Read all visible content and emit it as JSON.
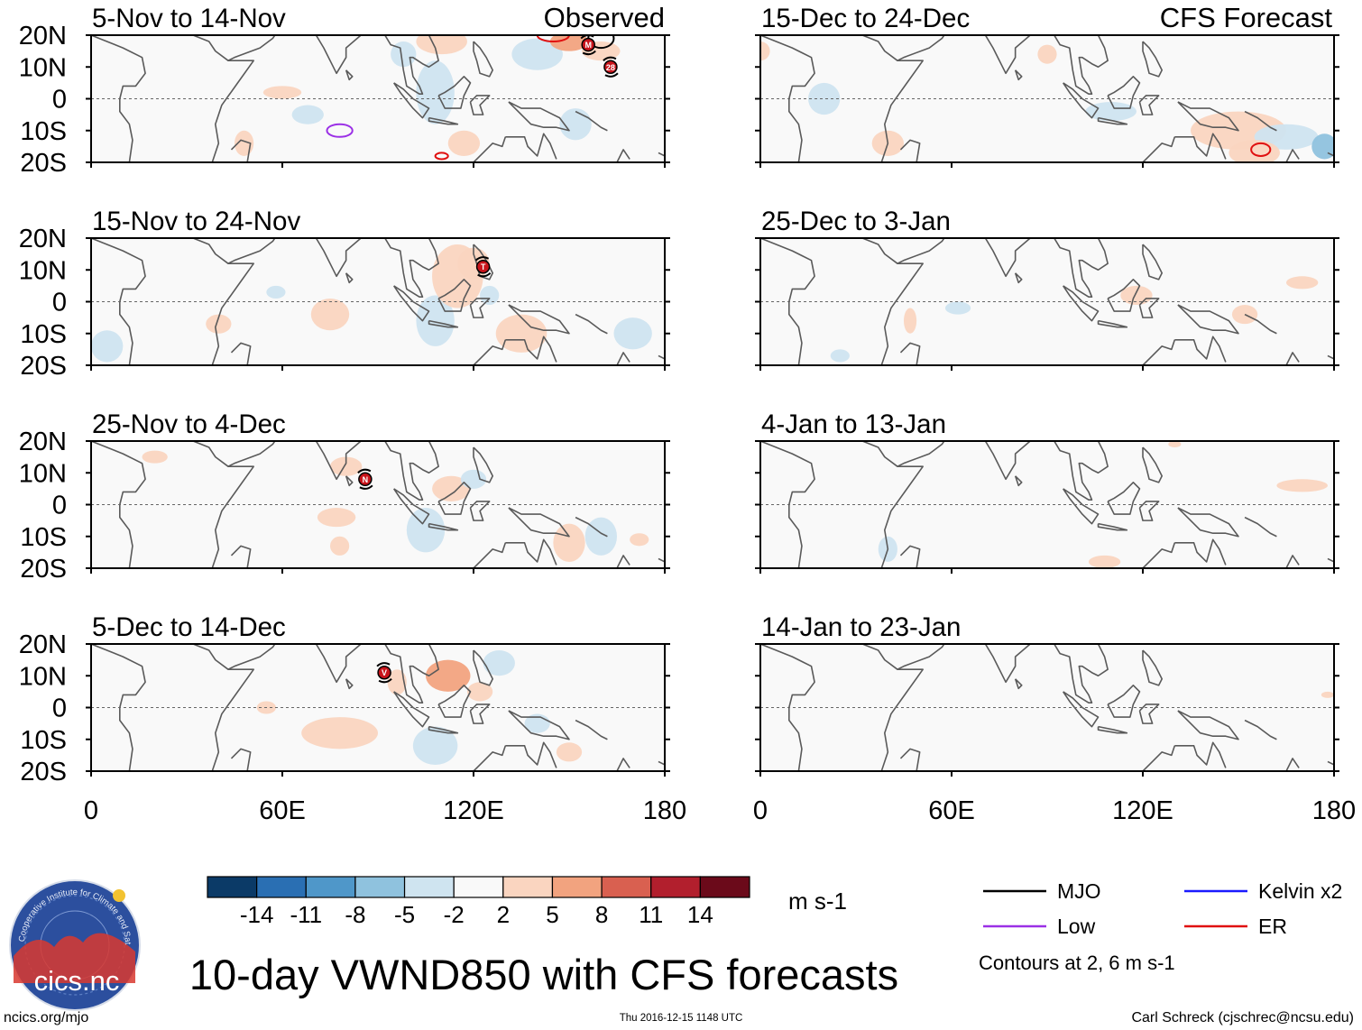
{
  "figure": {
    "title": "10-day VWND850 with CFS forecasts",
    "site": "ncics.org/mjo",
    "timestamp": "Thu 2016-12-15 1148 UTC",
    "author": "Carl Schreck (cjschrec@ncsu.edu)",
    "logo": {
      "name": "cics.nc",
      "ring_text": "Cooperative Institute for Climate and Satellites"
    }
  },
  "columns": {
    "left_header": "Observed",
    "right_header": "CFS Forecast"
  },
  "chart_data": {
    "type": "heatmap",
    "variable": "850-hPa meridional wind anomaly (VWND850)",
    "units": "m s-1",
    "x_axis": {
      "range": [
        0,
        180
      ],
      "ticks": [
        0,
        60,
        120,
        180
      ],
      "tick_labels": [
        "0",
        "60E",
        "120E",
        "180"
      ]
    },
    "y_axis": {
      "range": [
        -20,
        20
      ],
      "ticks": [
        20,
        10,
        0,
        -10,
        -20
      ],
      "tick_labels": [
        "20N",
        "10N",
        "0",
        "10S",
        "20S"
      ]
    },
    "colorbar": {
      "levels": [
        -14,
        -11,
        -8,
        -5,
        -2,
        2,
        5,
        8,
        11,
        14
      ],
      "colors": [
        "#0b3a67",
        "#2a6fb3",
        "#4f97c9",
        "#8fc2de",
        "#cfe4f0",
        "#f9f9f9",
        "#fad5c0",
        "#f2a37f",
        "#d96050",
        "#b21f2d",
        "#6b0a1a"
      ]
    },
    "panels": [
      {
        "period": "5-Nov to 14-Nov",
        "source": "Observed",
        "blobs": [
          {
            "lon": 60,
            "lat": 2,
            "rx": 6,
            "ry": 2,
            "v": 3
          },
          {
            "lon": 68,
            "lat": -5,
            "rx": 5,
            "ry": 3,
            "v": -3
          },
          {
            "lon": 98,
            "lat": 14,
            "rx": 4,
            "ry": 4,
            "v": -3
          },
          {
            "lon": 108,
            "lat": 2,
            "rx": 6,
            "ry": 10,
            "v": -3
          },
          {
            "lon": 117,
            "lat": -14,
            "rx": 5,
            "ry": 4,
            "v": 3
          },
          {
            "lon": 110,
            "lat": 18,
            "rx": 8,
            "ry": 4,
            "v": 4
          },
          {
            "lon": 140,
            "lat": 14,
            "rx": 8,
            "ry": 5,
            "v": -4
          },
          {
            "lon": 150,
            "lat": 18,
            "rx": 6,
            "ry": 3,
            "v": 6
          },
          {
            "lon": 160,
            "lat": 15,
            "rx": 6,
            "ry": 3,
            "v": 4
          },
          {
            "lon": 152,
            "lat": -8,
            "rx": 5,
            "ry": 5,
            "v": -3
          },
          {
            "lon": 48,
            "lat": -14,
            "rx": 3,
            "ry": 4,
            "v": 4
          }
        ],
        "contours": [
          {
            "lon": 78,
            "lat": -10,
            "rx": 4,
            "ry": 2,
            "feature": "Low"
          },
          {
            "lon": 110,
            "lat": -18,
            "rx": 2,
            "ry": 1,
            "feature": "ER"
          },
          {
            "lon": 145,
            "lat": 20,
            "rx": 5,
            "ry": 2,
            "feature": "ER"
          },
          {
            "lon": 160,
            "lat": 19,
            "rx": 4,
            "ry": 3,
            "feature": "MJO"
          }
        ],
        "storms": [
          {
            "label": "M",
            "lon": 156,
            "lat": 17
          },
          {
            "label": "28",
            "lon": 163,
            "lat": 10
          }
        ]
      },
      {
        "period": "15-Nov to 24-Nov",
        "source": "Observed",
        "blobs": [
          {
            "lon": 40,
            "lat": -7,
            "rx": 4,
            "ry": 3,
            "v": 3
          },
          {
            "lon": 75,
            "lat": -4,
            "rx": 6,
            "ry": 5,
            "v": 3
          },
          {
            "lon": 108,
            "lat": -6,
            "rx": 6,
            "ry": 8,
            "v": -3
          },
          {
            "lon": 115,
            "lat": 8,
            "rx": 8,
            "ry": 10,
            "v": 4
          },
          {
            "lon": 120,
            "lat": 12,
            "rx": 5,
            "ry": 5,
            "v": 3
          },
          {
            "lon": 135,
            "lat": -10,
            "rx": 8,
            "ry": 6,
            "v": 3
          },
          {
            "lon": 125,
            "lat": 2,
            "rx": 3,
            "ry": 3,
            "v": -3
          },
          {
            "lon": 170,
            "lat": -10,
            "rx": 6,
            "ry": 5,
            "v": -3
          },
          {
            "lon": 58,
            "lat": 3,
            "rx": 3,
            "ry": 2,
            "v": -3
          },
          {
            "lon": 5,
            "lat": -14,
            "rx": 5,
            "ry": 5,
            "v": -3
          }
        ],
        "contours": [],
        "storms": [
          {
            "label": "T",
            "lon": 123,
            "lat": 11
          }
        ]
      },
      {
        "period": "25-Nov to 4-Dec",
        "source": "Observed",
        "blobs": [
          {
            "lon": 80,
            "lat": 12,
            "rx": 5,
            "ry": 3,
            "v": 3
          },
          {
            "lon": 77,
            "lat": -4,
            "rx": 6,
            "ry": 3,
            "v": 3
          },
          {
            "lon": 78,
            "lat": -13,
            "rx": 3,
            "ry": 3,
            "v": 3
          },
          {
            "lon": 105,
            "lat": -8,
            "rx": 6,
            "ry": 7,
            "v": -3
          },
          {
            "lon": 113,
            "lat": 5,
            "rx": 6,
            "ry": 4,
            "v": 3
          },
          {
            "lon": 120,
            "lat": 8,
            "rx": 4,
            "ry": 3,
            "v": -3
          },
          {
            "lon": 150,
            "lat": -12,
            "rx": 5,
            "ry": 6,
            "v": 4
          },
          {
            "lon": 160,
            "lat": -10,
            "rx": 5,
            "ry": 6,
            "v": -3
          },
          {
            "lon": 172,
            "lat": -11,
            "rx": 3,
            "ry": 2,
            "v": 3
          },
          {
            "lon": 20,
            "lat": 15,
            "rx": 4,
            "ry": 2,
            "v": 3
          }
        ],
        "contours": [],
        "storms": [
          {
            "label": "N",
            "lon": 86,
            "lat": 8
          }
        ]
      },
      {
        "period": "5-Dec to 14-Dec",
        "source": "Observed",
        "blobs": [
          {
            "lon": 78,
            "lat": -8,
            "rx": 12,
            "ry": 5,
            "v": 3
          },
          {
            "lon": 108,
            "lat": -12,
            "rx": 7,
            "ry": 6,
            "v": -3
          },
          {
            "lon": 112,
            "lat": 10,
            "rx": 7,
            "ry": 5,
            "v": 5
          },
          {
            "lon": 122,
            "lat": 5,
            "rx": 4,
            "ry": 3,
            "v": 3
          },
          {
            "lon": 128,
            "lat": 14,
            "rx": 5,
            "ry": 4,
            "v": -3
          },
          {
            "lon": 96,
            "lat": 8,
            "rx": 3,
            "ry": 4,
            "v": 4
          },
          {
            "lon": 55,
            "lat": 0,
            "rx": 3,
            "ry": 2,
            "v": 3
          },
          {
            "lon": 140,
            "lat": -5,
            "rx": 4,
            "ry": 3,
            "v": -3
          },
          {
            "lon": 150,
            "lat": -14,
            "rx": 4,
            "ry": 3,
            "v": 3
          }
        ],
        "contours": [],
        "storms": [
          {
            "label": "V",
            "lon": 92,
            "lat": 11
          }
        ]
      },
      {
        "period": "15-Dec to 24-Dec",
        "source": "CFS Forecast",
        "blobs": [
          {
            "lon": 20,
            "lat": 0,
            "rx": 5,
            "ry": 5,
            "v": -3
          },
          {
            "lon": 40,
            "lat": -14,
            "rx": 5,
            "ry": 4,
            "v": 3
          },
          {
            "lon": 110,
            "lat": -4,
            "rx": 8,
            "ry": 3,
            "v": -3
          },
          {
            "lon": 150,
            "lat": -10,
            "rx": 15,
            "ry": 6,
            "v": 3
          },
          {
            "lon": 165,
            "lat": -12,
            "rx": 10,
            "ry": 4,
            "v": -4
          },
          {
            "lon": 177,
            "lat": -15,
            "rx": 4,
            "ry": 4,
            "v": -6
          },
          {
            "lon": 155,
            "lat": -17,
            "rx": 8,
            "ry": 4,
            "v": 4
          },
          {
            "lon": 90,
            "lat": 14,
            "rx": 3,
            "ry": 3,
            "v": 3
          },
          {
            "lon": 0,
            "lat": 15,
            "rx": 3,
            "ry": 3,
            "v": 3
          }
        ],
        "contours": [
          {
            "lon": 157,
            "lat": -16,
            "rx": 3,
            "ry": 2,
            "feature": "ER"
          }
        ],
        "storms": []
      },
      {
        "period": "25-Dec to 3-Jan",
        "source": "CFS Forecast",
        "blobs": [
          {
            "lon": 47,
            "lat": -6,
            "rx": 2,
            "ry": 4,
            "v": 3
          },
          {
            "lon": 118,
            "lat": 2,
            "rx": 5,
            "ry": 3,
            "v": 3
          },
          {
            "lon": 62,
            "lat": -2,
            "rx": 4,
            "ry": 2,
            "v": -3
          },
          {
            "lon": 152,
            "lat": -4,
            "rx": 4,
            "ry": 3,
            "v": 3
          },
          {
            "lon": 170,
            "lat": 6,
            "rx": 5,
            "ry": 2,
            "v": 3
          },
          {
            "lon": 25,
            "lat": -17,
            "rx": 3,
            "ry": 2,
            "v": -3
          }
        ],
        "contours": [],
        "storms": []
      },
      {
        "period": "4-Jan to 13-Jan",
        "source": "CFS Forecast",
        "blobs": [
          {
            "lon": 40,
            "lat": -14,
            "rx": 3,
            "ry": 4,
            "v": -3
          },
          {
            "lon": 170,
            "lat": 6,
            "rx": 8,
            "ry": 2,
            "v": 3
          },
          {
            "lon": 130,
            "lat": 19,
            "rx": 2,
            "ry": 1,
            "v": 3
          },
          {
            "lon": 108,
            "lat": -18,
            "rx": 5,
            "ry": 2,
            "v": 3
          }
        ],
        "contours": [],
        "storms": []
      },
      {
        "period": "14-Jan to 23-Jan",
        "source": "CFS Forecast",
        "blobs": [
          {
            "lon": 178,
            "lat": 4,
            "rx": 2,
            "ry": 1,
            "v": 3
          }
        ],
        "contours": [],
        "storms": []
      }
    ]
  },
  "legend": {
    "units": "m s-1",
    "items": [
      {
        "label": "MJO",
        "color": "#000000"
      },
      {
        "label": "Kelvin x2",
        "color": "#1a1aff"
      },
      {
        "label": "Low",
        "color": "#9b30e6"
      },
      {
        "label": "ER",
        "color": "#e01010"
      }
    ],
    "contour_note": "Contours at 2, 6 m s-1"
  }
}
